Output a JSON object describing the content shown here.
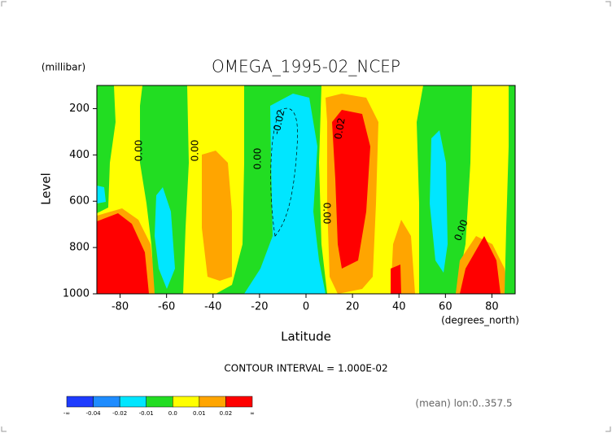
{
  "chart_data": {
    "type": "contour",
    "title": "OMEGA_1995-02_NCEP",
    "y_unit": "(millibar)",
    "y_label": "Level",
    "x_label": "Latitude",
    "x_unit": "(degrees_north)",
    "subtitle": "CONTOUR INTERVAL = 1.000E-02",
    "footnote": "(mean) lon:0..357.5",
    "xlim": [
      -90,
      90
    ],
    "xticks": [
      -80,
      -60,
      -40,
      -20,
      0,
      20,
      40,
      60,
      80
    ],
    "ylim": [
      100,
      1000
    ],
    "yticks": [
      200,
      400,
      600,
      800,
      1000
    ],
    "contour_labels": [
      "0.00",
      "0.00",
      "0.00",
      "-0.02",
      "0.02",
      "0.00",
      "0.00"
    ],
    "colorbar": {
      "colors": [
        "#1e3cff",
        "#1e8cff",
        "#00e6ff",
        "#22dd22",
        "#ffff00",
        "#ffa500",
        "#ff0000"
      ],
      "labels": [
        "-∞",
        "-0.04",
        "-0.02",
        "-0.01",
        "0.0",
        "0.01",
        "0.02",
        "∞"
      ]
    }
  }
}
